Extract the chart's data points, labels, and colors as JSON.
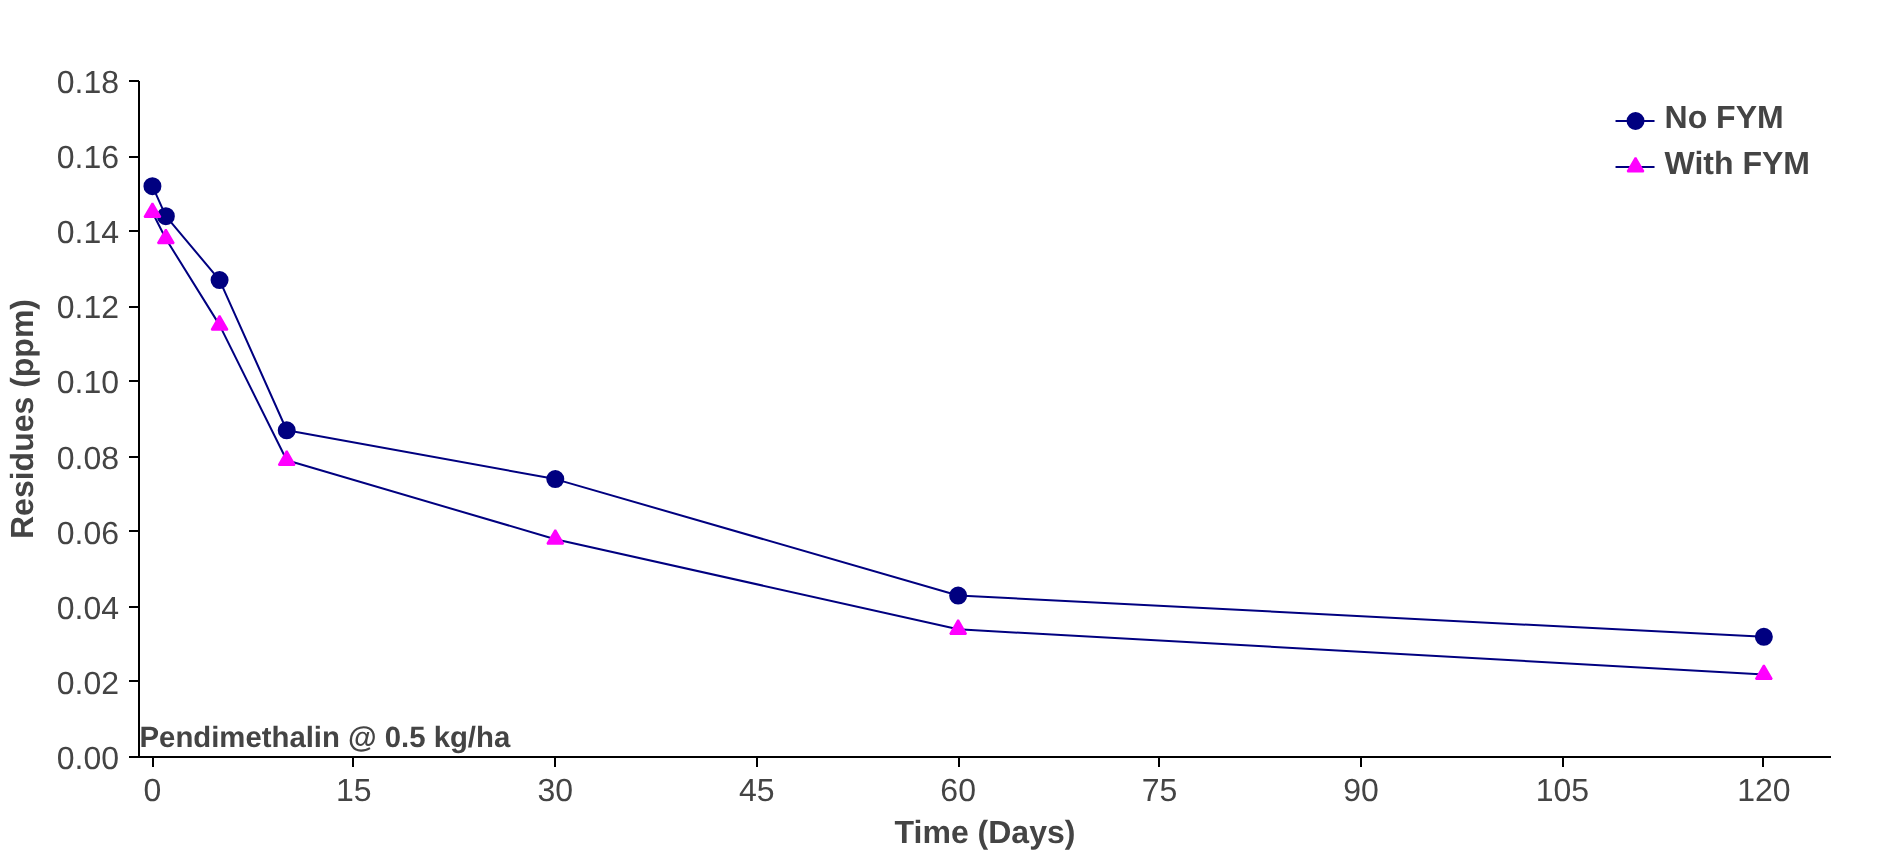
{
  "chart_data": {
    "type": "line",
    "title": "Pendimethalin @ 0.5 kg/ha",
    "xlabel": "Time (Days)",
    "ylabel": "Residues (ppm)",
    "x": [
      0,
      1,
      5,
      10,
      30,
      60,
      120
    ],
    "series": [
      {
        "name": "No FYM",
        "color": "#000080",
        "marker": "circle",
        "values": [
          0.152,
          0.144,
          0.127,
          0.087,
          0.074,
          0.043,
          0.032
        ]
      },
      {
        "name": "With FYM",
        "color": "#ff00ff",
        "marker": "triangle",
        "values": [
          0.145,
          0.138,
          0.115,
          0.079,
          0.058,
          0.034,
          0.022
        ]
      }
    ],
    "xlim": [
      -1,
      125
    ],
    "xticks": [
      0,
      15,
      30,
      45,
      60,
      75,
      90,
      105,
      120
    ],
    "ylim": [
      0,
      0.18
    ],
    "yticks": [
      {
        "value": 0,
        "label": "0.00"
      },
      {
        "value": 0.02,
        "label": "0.02"
      },
      {
        "value": 0.04,
        "label": "0.04"
      },
      {
        "value": 0.06,
        "label": "0.06"
      },
      {
        "value": 0.08,
        "label": "0.08"
      },
      {
        "value": 0.1,
        "label": "0.10"
      },
      {
        "value": 0.12,
        "label": "0.12"
      },
      {
        "value": 0.14,
        "label": "0.14"
      },
      {
        "value": 0.16,
        "label": "0.16"
      },
      {
        "value": 0.18,
        "label": "0.18"
      }
    ],
    "grid": false,
    "legend": "top right",
    "line_style": "solid"
  }
}
